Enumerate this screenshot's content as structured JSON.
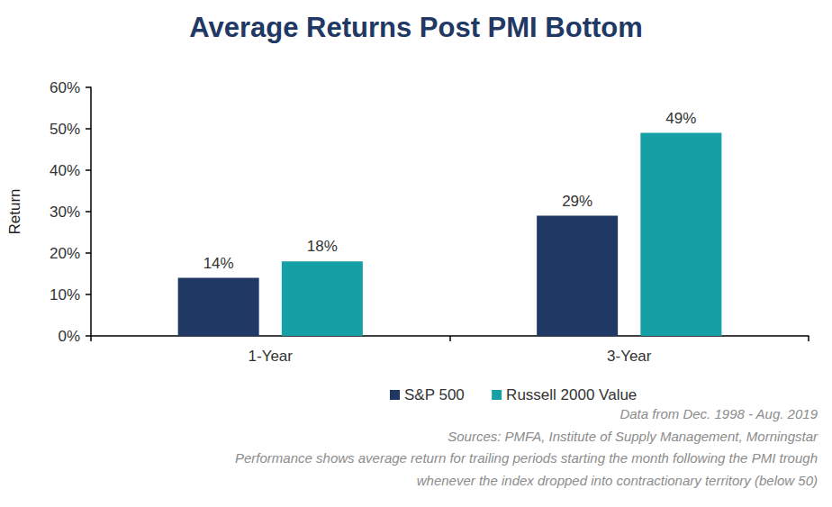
{
  "chart_data": {
    "type": "bar",
    "title": "Average Returns Post PMI Bottom",
    "y_label": "Return",
    "categories": [
      "1-Year",
      "3-Year"
    ],
    "series": [
      {
        "name": "S&P 500",
        "color": "#203864",
        "values": [
          14,
          29
        ],
        "value_labels": [
          "14%",
          "29%"
        ]
      },
      {
        "name": "Russell 2000 Value",
        "color": "#169fa5",
        "values": [
          18,
          49
        ],
        "value_labels": [
          "18%",
          "49%"
        ]
      }
    ],
    "ylim": [
      0,
      60
    ],
    "yticks": [
      {
        "value": 0,
        "label": "0%"
      },
      {
        "value": 10,
        "label": "10%"
      },
      {
        "value": 20,
        "label": "20%"
      },
      {
        "value": 30,
        "label": "30%"
      },
      {
        "value": 40,
        "label": "40%"
      },
      {
        "value": 50,
        "label": "50%"
      },
      {
        "value": 60,
        "label": "60%"
      }
    ],
    "grid": false,
    "legend": "bottom",
    "data_labels": true,
    "annotations": [
      "Data from Dec. 1998 - Aug. 2019",
      "Sources: PMFA, Institute of Supply Management, Morningstar",
      "Performance shows average return for trailing periods starting the month following the PMI trough",
      "whenever the index dropped into contractionary territory (below 50)"
    ]
  }
}
